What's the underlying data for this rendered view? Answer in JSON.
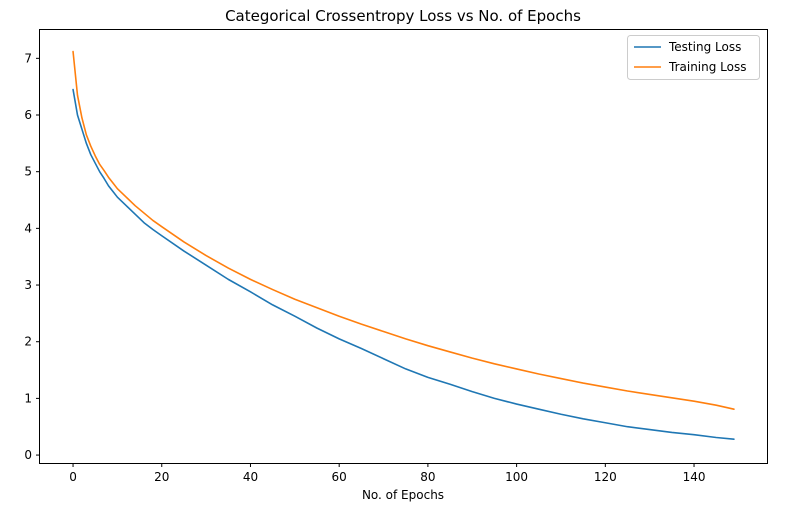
{
  "chart_data": {
    "type": "line",
    "title": "Categorical Crossentropy Loss vs No. of Epochs",
    "xlabel": "No. of Epochs",
    "ylabel": "",
    "xlim": [
      -7.45,
      156.45
    ],
    "ylim": [
      -0.14,
      7.5
    ],
    "xticks": [
      0,
      20,
      40,
      60,
      80,
      100,
      120,
      140
    ],
    "yticks": [
      0,
      1,
      2,
      3,
      4,
      5,
      6,
      7
    ],
    "grid": false,
    "legend_position": "top-right",
    "series": [
      {
        "name": "Testing Loss",
        "color": "#1f77b4",
        "x": [
          0,
          1,
          2,
          3,
          4,
          5,
          6,
          7,
          8,
          9,
          10,
          12,
          14,
          16,
          18,
          20,
          25,
          30,
          35,
          40,
          45,
          50,
          55,
          60,
          65,
          70,
          75,
          80,
          85,
          90,
          95,
          100,
          105,
          110,
          115,
          120,
          125,
          130,
          135,
          140,
          145,
          149
        ],
        "y": [
          6.45,
          6.0,
          5.75,
          5.5,
          5.3,
          5.15,
          5.0,
          4.88,
          4.75,
          4.65,
          4.55,
          4.4,
          4.25,
          4.1,
          3.98,
          3.87,
          3.6,
          3.35,
          3.1,
          2.88,
          2.65,
          2.45,
          2.24,
          2.05,
          1.88,
          1.7,
          1.52,
          1.37,
          1.25,
          1.12,
          1.0,
          0.9,
          0.81,
          0.72,
          0.64,
          0.57,
          0.5,
          0.45,
          0.4,
          0.36,
          0.31,
          0.28
        ]
      },
      {
        "name": "Training Loss",
        "color": "#ff7f0e",
        "x": [
          0,
          1,
          2,
          3,
          4,
          5,
          6,
          7,
          8,
          9,
          10,
          12,
          14,
          16,
          18,
          20,
          25,
          30,
          35,
          40,
          45,
          50,
          55,
          60,
          65,
          70,
          75,
          80,
          85,
          90,
          95,
          100,
          105,
          110,
          115,
          120,
          125,
          130,
          135,
          140,
          145,
          149
        ],
        "y": [
          7.12,
          6.35,
          5.95,
          5.65,
          5.45,
          5.28,
          5.13,
          5.02,
          4.9,
          4.8,
          4.7,
          4.55,
          4.4,
          4.27,
          4.14,
          4.03,
          3.76,
          3.52,
          3.3,
          3.1,
          2.92,
          2.75,
          2.6,
          2.45,
          2.31,
          2.18,
          2.05,
          1.93,
          1.82,
          1.71,
          1.61,
          1.52,
          1.43,
          1.35,
          1.27,
          1.2,
          1.13,
          1.07,
          1.01,
          0.95,
          0.88,
          0.81
        ]
      }
    ]
  }
}
